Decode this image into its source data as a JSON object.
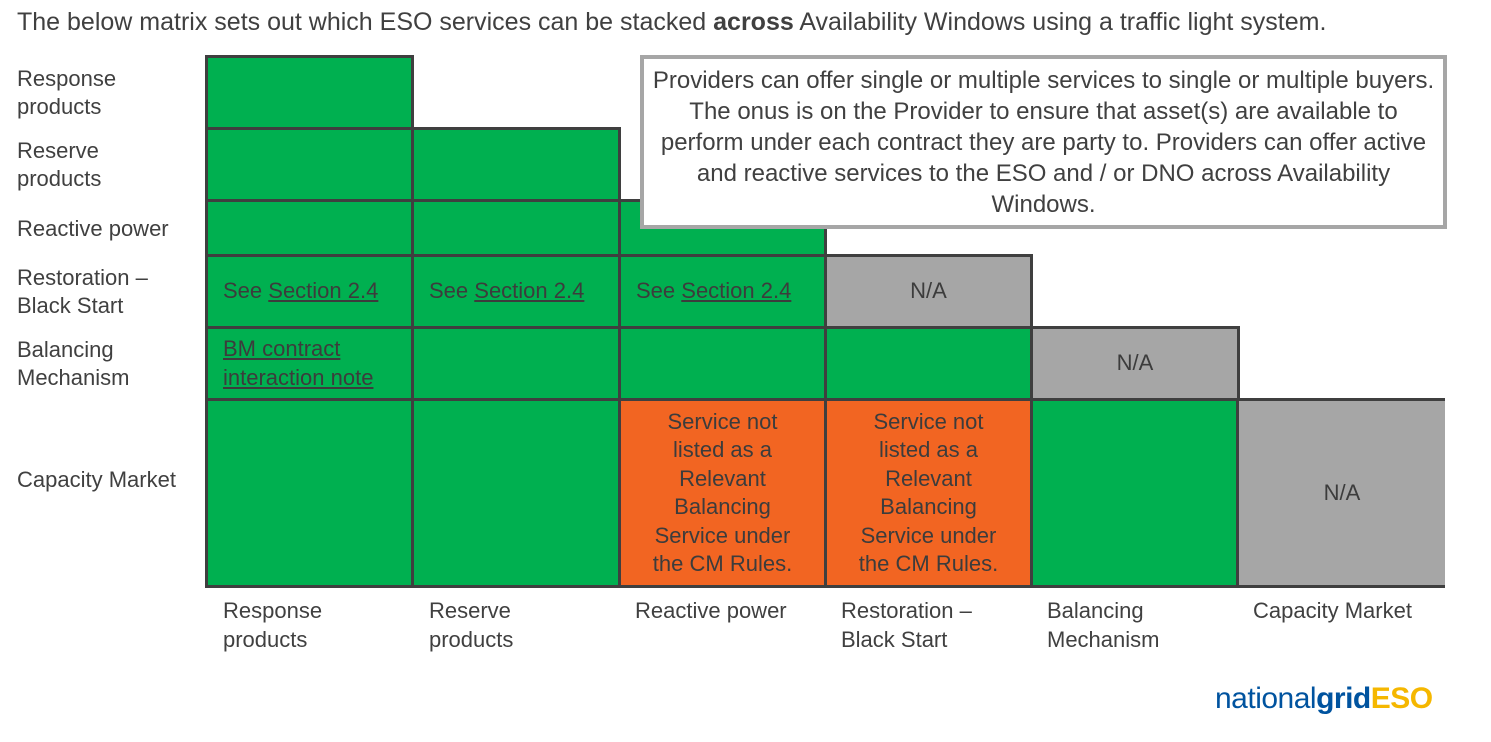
{
  "intro": {
    "before": "The below matrix sets out which ESO services can be stacked ",
    "bold": "across",
    "after": " Availability Windows using a traffic light system."
  },
  "rows": [
    {
      "line1": "Response",
      "line2": "products"
    },
    {
      "line1": "Reserve",
      "line2": "products"
    },
    {
      "line1": "Reactive power",
      "line2": ""
    },
    {
      "line1": "Restoration –",
      "line2": "Black Start"
    },
    {
      "line1": "Balancing",
      "line2": "Mechanism"
    },
    {
      "line1": "Capacity Market",
      "line2": ""
    }
  ],
  "columns": [
    {
      "line1": "Response",
      "line2": "products"
    },
    {
      "line1": "Reserve",
      "line2": "products"
    },
    {
      "line1": "Reactive power",
      "line2": ""
    },
    {
      "line1": "Restoration –",
      "line2": "Black Start"
    },
    {
      "line1": "Balancing",
      "line2": "Mechanism"
    },
    {
      "line1": "Capacity Market",
      "line2": ""
    }
  ],
  "matrix": {
    "legend_colors": {
      "green": "#00b050",
      "grey": "#a6a6a6",
      "orange": "#f26522"
    },
    "see_prefix": "See ",
    "section_link": "Section 2.4",
    "na": "N/A",
    "bm_link_line1": "BM contract",
    "bm_link_line2": "interaction note",
    "cm_note_lines": [
      "Service not",
      "listed as a",
      "Relevant",
      "Balancing",
      "Service under",
      "the CM Rules."
    ]
  },
  "note": {
    "text": "Providers can offer single or multiple services to single or multiple buyers. The onus is on the Provider to ensure that asset(s) are available to perform under each contract they are party to. Providers can offer active and reactive services to the ESO and / or DNO across Availability Windows."
  },
  "logo": {
    "part1": "national",
    "part2": "grid",
    "part3": "ESO"
  }
}
